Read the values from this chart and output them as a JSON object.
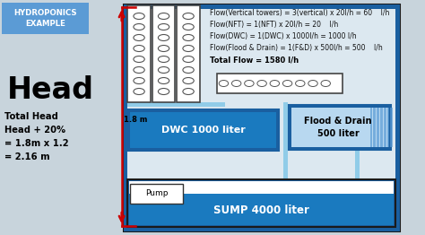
{
  "bg_color": "#c8d4dc",
  "title_box_color": "#5b9bd5",
  "title_text": "HYDROPONICS\nEXAMPLE",
  "title_text_color": "white",
  "head_text": "Head",
  "formula_lines": [
    "Total Head",
    "Head + 20%",
    "= 1.8m x 1.2",
    "= 2.16 m"
  ],
  "flow_lines": [
    "Flow(Vertical towers) = 3(vertical) x 20l/h = 60    l/h",
    "Flow(NFT) = 1(NFT) x 20l/h = 20    l/h",
    "Flow(DWC) = 1(DWC) x 1000l/h = 1000 l/h",
    "Flow(Flood & Drain) = 1(F&D) x 500l/h = 500    l/h"
  ],
  "total_flow_text": "Total Flow = 1580 l/h",
  "dwc_color": "#1a7abf",
  "dwc_label": "DWC 1000 liter",
  "fd_label": "Flood & Drain\n500 liter",
  "fd_bg_color": "#b8d8f0",
  "fd_stripe_color": "#5b9bd5",
  "sump_color": "#1a7abf",
  "sump_label": "SUMP 4000 liter",
  "pump_label": "Pump",
  "arrow_color": "#cc0000",
  "pipe_dark": "#1a5fa0",
  "pipe_light": "#90cce8",
  "head_label": "1.8 m",
  "tower_fill": "white",
  "tower_border": "#444444",
  "nft_fill": "white",
  "nft_border": "#444444",
  "frame_outer": "#1a1a1a",
  "frame_inner_fill": "#dce8f0"
}
